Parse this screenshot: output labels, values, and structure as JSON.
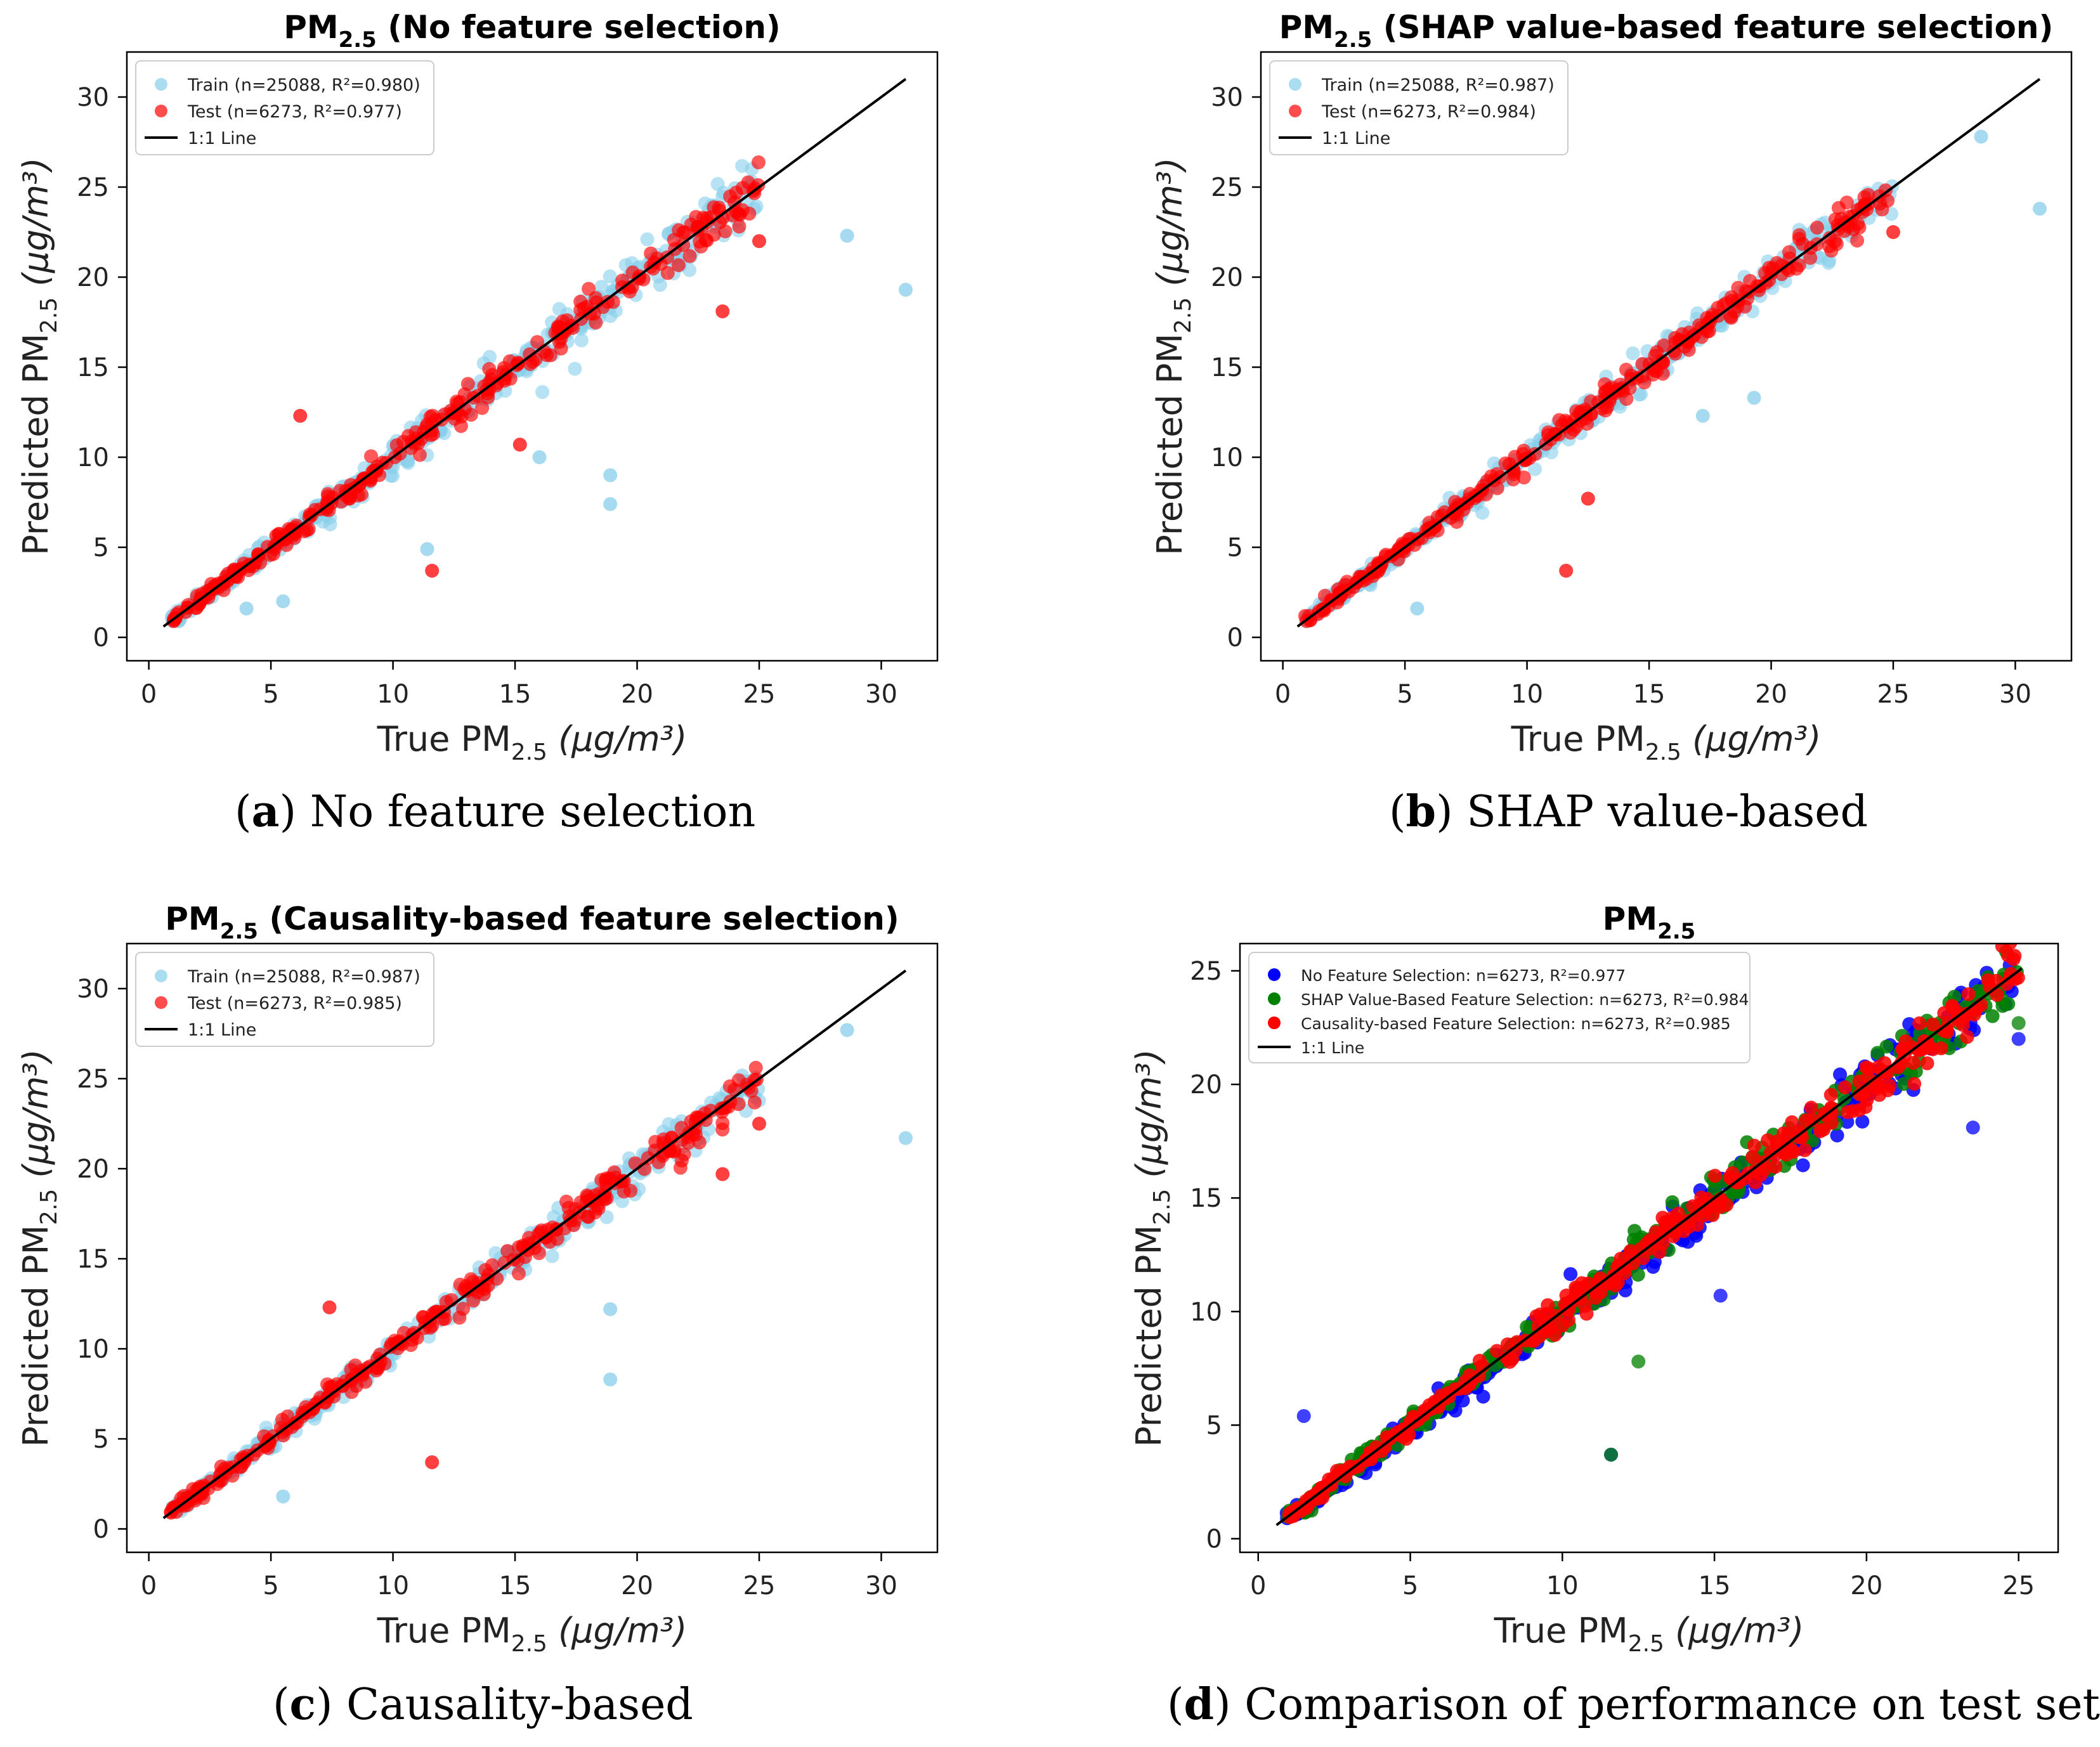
{
  "colors": {
    "train": "#87CEEB",
    "test": "#FF0000",
    "no_feature": "#0000FF",
    "shap": "#008000",
    "causality": "#FF0000",
    "line": "#000000"
  },
  "captions": [
    {
      "letter": "a",
      "text": " No feature selection"
    },
    {
      "letter": "b",
      "text": " SHAP value-based"
    },
    {
      "letter": "c",
      "text": " Causality-based"
    },
    {
      "letter": "d",
      "text": " Comparison of performance on test set"
    }
  ],
  "chart_data": [
    {
      "id": "a",
      "type": "scatter",
      "title_main": "PM",
      "title_sub": "2.5",
      "title_rest": " (No feature selection)",
      "xlabel_main": "True PM",
      "xlabel_sub": "2.5",
      "xlabel_unit": " (μg/m³)",
      "ylabel_main": "Predicted PM",
      "ylabel_sub": "2.5",
      "ylabel_unit": " (μg/m³)",
      "xlim": [
        -0.9,
        32.3
      ],
      "ylim": [
        -1.3,
        32.5
      ],
      "xticks": [
        0,
        5,
        10,
        15,
        20,
        25,
        30
      ],
      "yticks": [
        0,
        5,
        10,
        15,
        20,
        25,
        30
      ],
      "series": [
        {
          "name": "Train",
          "label": "Train (n=25088, R²=0.980)",
          "color": "#87CEEB",
          "n": 25088,
          "r2": 0.98,
          "spread": 0.55
        },
        {
          "name": "Test",
          "label": "Test (n=6273, R²=0.977)",
          "color": "#FF0000",
          "n": 6273,
          "r2": 0.977,
          "spread": 0.45
        }
      ],
      "outliers": [
        {
          "series": 0,
          "x": 31.0,
          "y": 19.3
        },
        {
          "series": 0,
          "x": 28.6,
          "y": 22.3
        },
        {
          "series": 0,
          "x": 18.9,
          "y": 9.0
        },
        {
          "series": 0,
          "x": 18.9,
          "y": 7.4
        },
        {
          "series": 0,
          "x": 16.0,
          "y": 10.0
        },
        {
          "series": 0,
          "x": 11.4,
          "y": 4.9
        },
        {
          "series": 0,
          "x": 5.5,
          "y": 2.0
        },
        {
          "series": 0,
          "x": 4.0,
          "y": 1.6
        },
        {
          "series": 1,
          "x": 11.6,
          "y": 3.7
        },
        {
          "series": 1,
          "x": 23.5,
          "y": 18.1
        },
        {
          "series": 1,
          "x": 15.2,
          "y": 10.7
        },
        {
          "series": 1,
          "x": 6.2,
          "y": 12.3
        },
        {
          "series": 1,
          "x": 25.0,
          "y": 22.0
        }
      ],
      "line": {
        "label": "1:1 Line",
        "from": [
          0.6,
          0.6
        ],
        "to": [
          31.0,
          31.0
        ]
      }
    },
    {
      "id": "b",
      "type": "scatter",
      "title_main": "PM",
      "title_sub": "2.5",
      "title_rest": " (SHAP value-based feature selection)",
      "xlabel_main": "True PM",
      "xlabel_sub": "2.5",
      "xlabel_unit": " (μg/m³)",
      "ylabel_main": "Predicted PM",
      "ylabel_sub": "2.5",
      "ylabel_unit": " (μg/m³)",
      "xlim": [
        -0.9,
        32.3
      ],
      "ylim": [
        -1.3,
        32.5
      ],
      "xticks": [
        0,
        5,
        10,
        15,
        20,
        25,
        30
      ],
      "yticks": [
        0,
        5,
        10,
        15,
        20,
        25,
        30
      ],
      "series": [
        {
          "name": "Train",
          "label": "Train (n=25088, R²=0.987)",
          "color": "#87CEEB",
          "n": 25088,
          "r2": 0.987,
          "spread": 0.45
        },
        {
          "name": "Test",
          "label": "Test (n=6273, R²=0.984)",
          "color": "#FF0000",
          "n": 6273,
          "r2": 0.984,
          "spread": 0.4
        }
      ],
      "outliers": [
        {
          "series": 0,
          "x": 31.0,
          "y": 23.8
        },
        {
          "series": 0,
          "x": 28.6,
          "y": 27.8
        },
        {
          "series": 0,
          "x": 19.3,
          "y": 13.3
        },
        {
          "series": 0,
          "x": 17.2,
          "y": 12.3
        },
        {
          "series": 0,
          "x": 5.5,
          "y": 1.6
        },
        {
          "series": 1,
          "x": 11.6,
          "y": 3.7
        },
        {
          "series": 1,
          "x": 12.5,
          "y": 7.7
        },
        {
          "series": 1,
          "x": 25.0,
          "y": 22.5
        }
      ],
      "line": {
        "label": "1:1 Line",
        "from": [
          0.6,
          0.6
        ],
        "to": [
          31.0,
          31.0
        ]
      }
    },
    {
      "id": "c",
      "type": "scatter",
      "title_main": "PM",
      "title_sub": "2.5",
      "title_rest": " (Causality-based feature selection)",
      "xlabel_main": "True PM",
      "xlabel_sub": "2.5",
      "xlabel_unit": " (μg/m³)",
      "ylabel_main": "Predicted PM",
      "ylabel_sub": "2.5",
      "ylabel_unit": " (μg/m³)",
      "xlim": [
        -0.9,
        32.3
      ],
      "ylim": [
        -1.3,
        32.5
      ],
      "xticks": [
        0,
        5,
        10,
        15,
        20,
        25,
        30
      ],
      "yticks": [
        0,
        5,
        10,
        15,
        20,
        25,
        30
      ],
      "series": [
        {
          "name": "Train",
          "label": "Train (n=25088, R²=0.987)",
          "color": "#87CEEB",
          "n": 25088,
          "r2": 0.987,
          "spread": 0.45
        },
        {
          "name": "Test",
          "label": "Test (n=6273, R²=0.985)",
          "color": "#FF0000",
          "n": 6273,
          "r2": 0.985,
          "spread": 0.4
        }
      ],
      "outliers": [
        {
          "series": 0,
          "x": 31.0,
          "y": 21.7
        },
        {
          "series": 0,
          "x": 28.6,
          "y": 27.7
        },
        {
          "series": 0,
          "x": 18.9,
          "y": 12.2
        },
        {
          "series": 0,
          "x": 18.9,
          "y": 8.3
        },
        {
          "series": 0,
          "x": 5.5,
          "y": 1.8
        },
        {
          "series": 1,
          "x": 11.6,
          "y": 3.7
        },
        {
          "series": 1,
          "x": 23.5,
          "y": 19.7
        },
        {
          "series": 1,
          "x": 25.0,
          "y": 22.5
        },
        {
          "series": 1,
          "x": 7.4,
          "y": 12.3
        }
      ],
      "line": {
        "label": "1:1 Line",
        "from": [
          0.6,
          0.6
        ],
        "to": [
          31.0,
          31.0
        ]
      }
    },
    {
      "id": "d",
      "type": "scatter",
      "title_main": "PM",
      "title_sub": "2.5",
      "title_rest": "",
      "xlabel_main": "True PM",
      "xlabel_sub": "2.5",
      "xlabel_unit": " (μg/m³)",
      "ylabel_main": "Predicted PM",
      "ylabel_sub": "2.5",
      "ylabel_unit": " (μg/m³)",
      "xlim": [
        -0.6,
        26.3
      ],
      "ylim": [
        -0.6,
        26.2
      ],
      "xticks": [
        0,
        5,
        10,
        15,
        20,
        25
      ],
      "yticks": [
        0,
        5,
        10,
        15,
        20,
        25
      ],
      "series": [
        {
          "name": "No Feature Selection",
          "label": "No Feature Selection: n=6273, R²=0.977",
          "color": "#0000FF",
          "n": 6273,
          "r2": 0.977,
          "spread": 0.5
        },
        {
          "name": "SHAP Value-Based Feature Selection",
          "label": "SHAP Value-Based Feature Selection: n=6273, R²=0.984",
          "color": "#008000",
          "n": 6273,
          "r2": 0.984,
          "spread": 0.45
        },
        {
          "name": "Causality-based Feature Selection",
          "label": "Causality-based Feature Selection: n=6273, R²=0.985",
          "color": "#FF0000",
          "n": 6273,
          "r2": 0.985,
          "spread": 0.4
        }
      ],
      "outliers": [
        {
          "series": 0,
          "x": 23.5,
          "y": 18.1
        },
        {
          "series": 0,
          "x": 25.0,
          "y": 22.0
        },
        {
          "series": 0,
          "x": 15.2,
          "y": 10.7
        },
        {
          "series": 0,
          "x": 11.6,
          "y": 3.7
        },
        {
          "series": 1,
          "x": 12.5,
          "y": 7.8
        },
        {
          "series": 1,
          "x": 11.6,
          "y": 3.7
        },
        {
          "series": 1,
          "x": 25.0,
          "y": 22.7
        },
        {
          "series": 0,
          "x": 1.5,
          "y": 5.4
        }
      ],
      "line": {
        "label": "1:1 Line",
        "from": [
          0.6,
          0.6
        ],
        "to": [
          25.1,
          25.1
        ]
      }
    }
  ]
}
